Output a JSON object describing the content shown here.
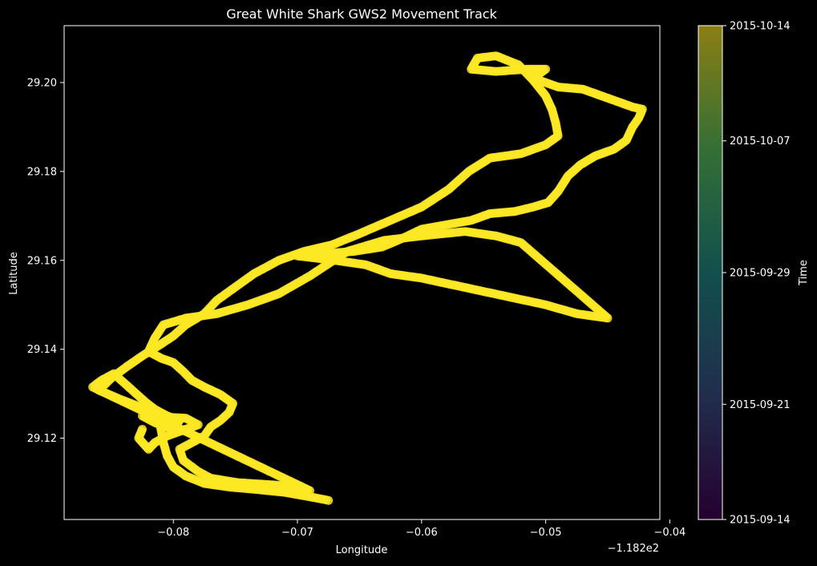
{
  "chart_data": {
    "type": "scatter",
    "title": "Great White Shark GWS2 Movement Track",
    "xlabel": "Longitude",
    "ylabel": "Latitude",
    "x_offset_label": "−1.182e2",
    "xlim": [
      -0.0888,
      -0.0408
    ],
    "ylim": [
      29.1017,
      29.2128
    ],
    "xticks": [
      -0.08,
      -0.07,
      -0.06,
      -0.05,
      -0.04
    ],
    "xtick_labels": [
      "−0.08",
      "−0.07",
      "−0.06",
      "−0.05",
      "−0.04"
    ],
    "yticks": [
      29.12,
      29.14,
      29.16,
      29.18,
      29.2
    ],
    "ytick_labels": [
      "29.12",
      "29.14",
      "29.16",
      "29.18",
      "29.20"
    ],
    "grid": false,
    "point_color": "#fde725",
    "colorbar": {
      "label": "Time",
      "colormap": "viridis",
      "range": [
        "2015-09-14",
        "2015-10-14"
      ],
      "ticks": [
        "2015-10-14",
        "2015-10-07",
        "2015-09-29",
        "2015-09-21",
        "2015-09-14"
      ]
    },
    "track": [
      [
        -0.0675,
        29.106
      ],
      [
        -0.069,
        29.1068
      ],
      [
        -0.071,
        29.1078
      ],
      [
        -0.0735,
        29.1085
      ],
      [
        -0.0755,
        29.109
      ],
      [
        -0.0775,
        29.1098
      ],
      [
        -0.079,
        29.1115
      ],
      [
        -0.08,
        29.1135
      ],
      [
        -0.0805,
        29.116
      ],
      [
        -0.0808,
        29.119
      ],
      [
        -0.081,
        29.122
      ],
      [
        -0.0812,
        29.125
      ],
      [
        -0.0825,
        29.1268
      ],
      [
        -0.0845,
        29.129
      ],
      [
        -0.086,
        29.1308
      ],
      [
        -0.085,
        29.1335
      ],
      [
        -0.0838,
        29.136
      ],
      [
        -0.0825,
        29.1385
      ],
      [
        -0.0812,
        29.1408
      ],
      [
        -0.08,
        29.143
      ],
      [
        -0.079,
        29.1455
      ],
      [
        -0.0775,
        29.148
      ],
      [
        -0.0765,
        29.151
      ],
      [
        -0.075,
        29.154
      ],
      [
        -0.0735,
        29.157
      ],
      [
        -0.0715,
        29.16
      ],
      [
        -0.0695,
        29.162
      ],
      [
        -0.0672,
        29.1635
      ],
      [
        -0.065,
        29.166
      ],
      [
        -0.0625,
        29.169
      ],
      [
        -0.06,
        29.172
      ],
      [
        -0.0578,
        29.176
      ],
      [
        -0.0562,
        29.18
      ],
      [
        -0.0545,
        29.183
      ],
      [
        -0.052,
        29.184
      ],
      [
        -0.05,
        29.186
      ],
      [
        -0.049,
        29.188
      ],
      [
        -0.0492,
        29.191
      ],
      [
        -0.0495,
        29.194
      ],
      [
        -0.05,
        29.197
      ],
      [
        -0.051,
        29.2005
      ],
      [
        -0.0522,
        29.204
      ],
      [
        -0.054,
        29.206
      ],
      [
        -0.0555,
        29.2055
      ],
      [
        -0.056,
        29.203
      ],
      [
        -0.054,
        29.2025
      ],
      [
        -0.0515,
        29.203
      ],
      [
        -0.05,
        29.203
      ],
      [
        -0.051,
        29.201
      ],
      [
        -0.049,
        29.199
      ],
      [
        -0.047,
        29.1985
      ],
      [
        -0.0455,
        29.197
      ],
      [
        -0.044,
        29.1955
      ],
      [
        -0.043,
        29.1945
      ],
      [
        -0.0422,
        29.194
      ],
      [
        -0.0425,
        29.192
      ],
      [
        -0.043,
        29.19
      ],
      [
        -0.0435,
        29.187
      ],
      [
        -0.0445,
        29.185
      ],
      [
        -0.046,
        29.1835
      ],
      [
        -0.0472,
        29.1815
      ],
      [
        -0.0482,
        29.179
      ],
      [
        -0.049,
        29.1755
      ],
      [
        -0.0498,
        29.173
      ],
      [
        -0.051,
        29.172
      ],
      [
        -0.0525,
        29.171
      ],
      [
        -0.0545,
        29.1705
      ],
      [
        -0.056,
        29.169
      ],
      [
        -0.058,
        29.168
      ],
      [
        -0.06,
        29.167
      ],
      [
        -0.0615,
        29.165
      ],
      [
        -0.0632,
        29.163
      ],
      [
        -0.0655,
        29.162
      ],
      [
        -0.068,
        29.1615
      ],
      [
        -0.07,
        29.161
      ],
      [
        -0.067,
        29.16
      ],
      [
        -0.0645,
        29.159
      ],
      [
        -0.0625,
        29.157
      ],
      [
        -0.06,
        29.156
      ],
      [
        -0.0575,
        29.1545
      ],
      [
        -0.055,
        29.153
      ],
      [
        -0.0525,
        29.1515
      ],
      [
        -0.05,
        29.15
      ],
      [
        -0.0475,
        29.148
      ],
      [
        -0.045,
        29.147
      ],
      [
        -0.052,
        29.164
      ],
      [
        -0.054,
        29.1655
      ],
      [
        -0.0565,
        29.1665
      ],
      [
        -0.06,
        29.1655
      ],
      [
        -0.063,
        29.1645
      ],
      [
        -0.066,
        29.162
      ],
      [
        -0.069,
        29.1565
      ],
      [
        -0.0715,
        29.1525
      ],
      [
        -0.074,
        29.15
      ],
      [
        -0.0765,
        29.148
      ],
      [
        -0.079,
        29.147
      ],
      [
        -0.0808,
        29.1455
      ],
      [
        -0.0815,
        29.1425
      ],
      [
        -0.082,
        29.1395
      ],
      [
        -0.081,
        29.138
      ],
      [
        -0.08,
        29.137
      ],
      [
        -0.0792,
        29.135
      ],
      [
        -0.0785,
        29.133
      ],
      [
        -0.0775,
        29.1315
      ],
      [
        -0.0762,
        29.1298
      ],
      [
        -0.0752,
        29.1278
      ],
      [
        -0.0755,
        29.1258
      ],
      [
        -0.0762,
        29.124
      ],
      [
        -0.077,
        29.1225
      ],
      [
        -0.0775,
        29.1205
      ],
      [
        -0.0785,
        29.119
      ],
      [
        -0.0795,
        29.1175
      ],
      [
        -0.0792,
        29.115
      ],
      [
        -0.078,
        29.1125
      ],
      [
        -0.077,
        29.111
      ],
      [
        -0.0748,
        29.11
      ],
      [
        -0.072,
        29.1095
      ],
      [
        -0.07,
        29.109
      ],
      [
        -0.069,
        29.1082
      ],
      [
        -0.0865,
        29.1315
      ],
      [
        -0.0858,
        29.133
      ],
      [
        -0.0848,
        29.1345
      ],
      [
        -0.0838,
        29.132
      ],
      [
        -0.083,
        29.13
      ],
      [
        -0.0822,
        29.128
      ],
      [
        -0.0815,
        29.1265
      ],
      [
        -0.0805,
        29.125
      ],
      [
        -0.0795,
        29.124
      ],
      [
        -0.08,
        29.122
      ],
      [
        -0.0815,
        29.1235
      ],
      [
        -0.0825,
        29.125
      ],
      [
        -0.079,
        29.1245
      ],
      [
        -0.078,
        29.123
      ],
      [
        -0.0805,
        29.1205
      ],
      [
        -0.0815,
        29.119
      ],
      [
        -0.082,
        29.1175
      ],
      [
        -0.0828,
        29.12
      ],
      [
        -0.0825,
        29.122
      ]
    ]
  }
}
